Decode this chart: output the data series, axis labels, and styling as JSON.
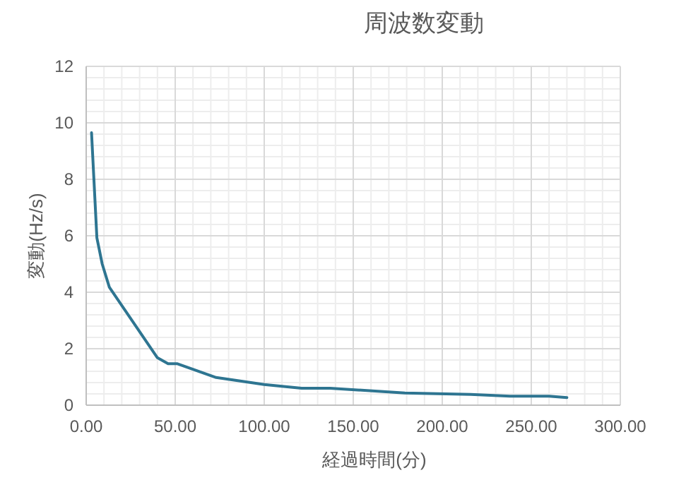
{
  "chart_data": {
    "type": "line",
    "title": "周波数変動",
    "xlabel": "経過時間(分)",
    "ylabel": "変動(Hz/s)",
    "x": [
      3,
      6,
      9,
      13,
      40,
      46,
      51,
      73,
      100,
      121,
      137,
      179,
      216,
      238,
      260,
      270
    ],
    "series": [
      {
        "color": "#2e7591",
        "values": [
          9.65,
          5.93,
          5.0,
          4.18,
          1.68,
          1.47,
          1.47,
          0.98,
          0.73,
          0.6,
          0.6,
          0.43,
          0.38,
          0.32,
          0.32,
          0.27
        ]
      }
    ],
    "xlim": [
      0,
      300
    ],
    "xticks": [
      {
        "value": 0,
        "label": "0.00"
      },
      {
        "value": 50,
        "label": "50.00"
      },
      {
        "value": 100,
        "label": "100.00"
      },
      {
        "value": 150,
        "label": "150.00"
      },
      {
        "value": 200,
        "label": "200.00"
      },
      {
        "value": 250,
        "label": "250.00"
      },
      {
        "value": 300,
        "label": "300.00"
      }
    ],
    "ylim": [
      0,
      12
    ],
    "yticks": [
      0,
      2,
      4,
      6,
      8,
      10,
      12
    ],
    "grid": true,
    "marker": "none",
    "line_style": "solid"
  }
}
